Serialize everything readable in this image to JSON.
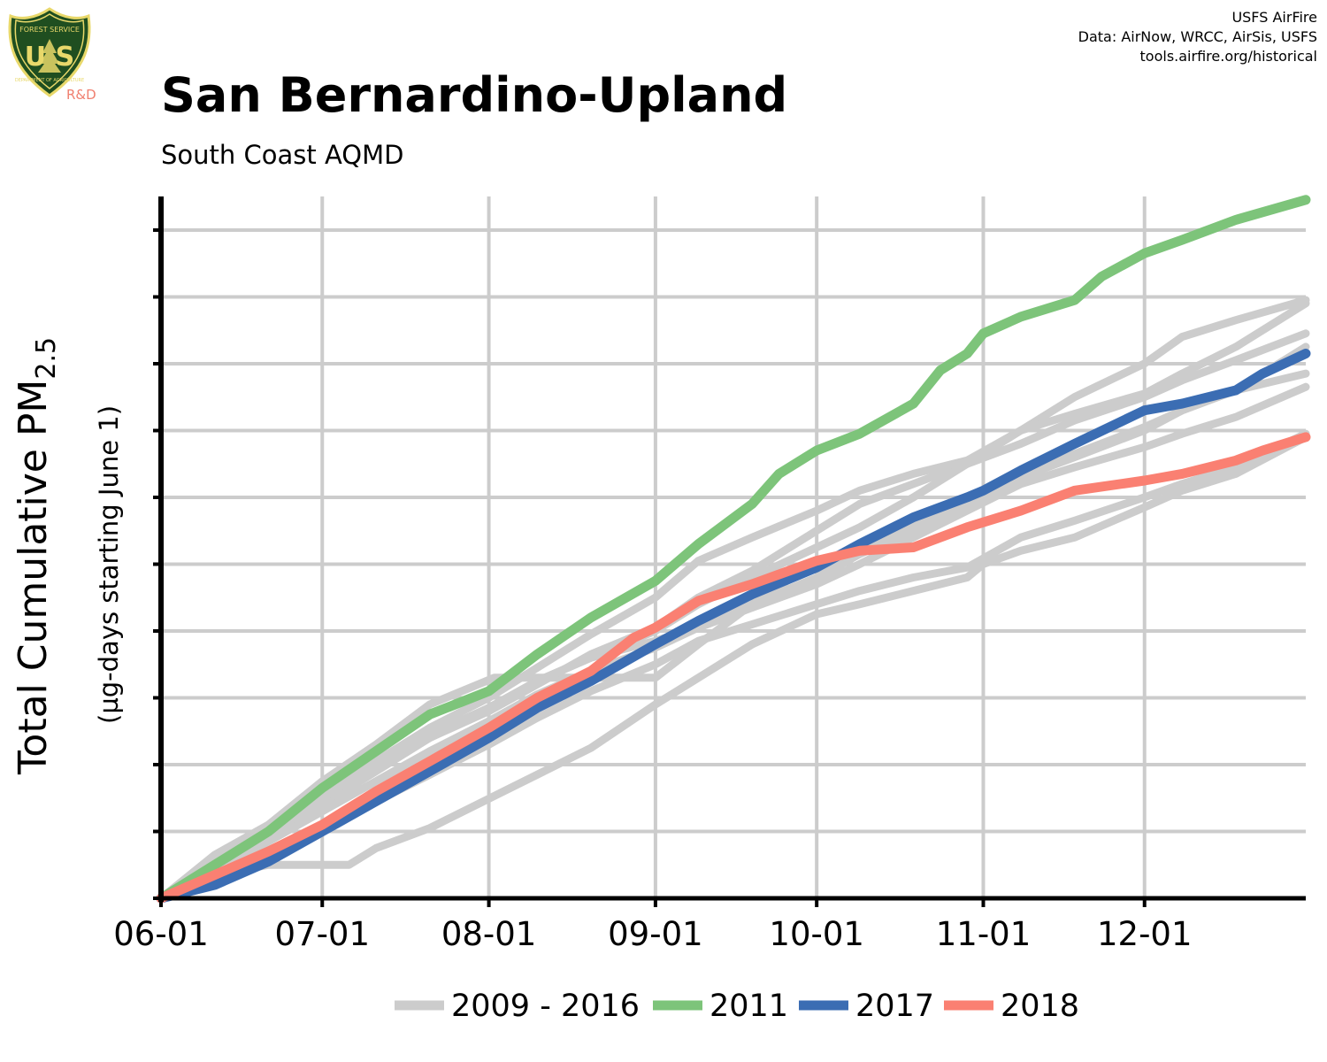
{
  "header": {
    "title": "San Bernardino-Upland",
    "subtitle": "South Coast AQMD",
    "credits": [
      "USFS AirFire",
      "Data: AirNow, WRCC, AirSis, USFS",
      "tools.airfire.org/historical"
    ]
  },
  "logo": {
    "icon": "usfs-shield-icon",
    "top_text": "FOREST SERVICE",
    "main_text": "U S",
    "bottom_text": "DEPARTMENT OF AGRICULTURE",
    "badge": "R&D",
    "colors": {
      "shield": "#1f4e20",
      "gold": "#e8d86a"
    }
  },
  "chart_data": {
    "type": "line",
    "xlabel": "",
    "ylabel": "Total Cumulative PM",
    "ylabel_subscript": "2.5",
    "ylabel_note": "(µg-days starting June 1)",
    "y_tick_labels_shown": false,
    "y_tick_count": 11,
    "x_ticks": [
      "06-01",
      "07-01",
      "08-01",
      "09-01",
      "10-01",
      "11-01",
      "12-01"
    ],
    "x_tick_days": [
      0,
      30,
      61,
      92,
      122,
      153,
      183
    ],
    "xlim_days": [
      0,
      213
    ],
    "ylim": [
      0,
      105
    ],
    "grid": true,
    "legend_position": "bottom",
    "legend": [
      {
        "label": "2009 - 2016",
        "color": "#cccccc"
      },
      {
        "label": "2011",
        "color": "#7dc47a"
      },
      {
        "label": "2017",
        "color": "#3b6db3"
      },
      {
        "label": "2018",
        "color": "#fa8072"
      }
    ],
    "series": [
      {
        "name": "2009 - 2016",
        "group": "background",
        "color": "#cccccc",
        "x": [
          0,
          10,
          20,
          30,
          35,
          40,
          50,
          60,
          70,
          80,
          92,
          100,
          110,
          122,
          130,
          140,
          150,
          153,
          160,
          170,
          183,
          190,
          200,
          213
        ],
        "y": [
          0,
          3.5,
          5.0,
          5.0,
          5.0,
          7.5,
          10.5,
          14.5,
          18.5,
          22.5,
          29.0,
          33.0,
          38.0,
          42.5,
          44.0,
          46.0,
          48.0,
          50.0,
          52.0,
          54.0,
          58.5,
          61.0,
          63.5,
          69.0
        ]
      },
      {
        "name": "2009 - 2016",
        "group": "background",
        "color": "#cccccc",
        "x": [
          0,
          10,
          20,
          30,
          40,
          50,
          62,
          70,
          80,
          92,
          100,
          110,
          122,
          130,
          140,
          150,
          160,
          170,
          183,
          190,
          200,
          213
        ],
        "y": [
          0,
          6.5,
          11.0,
          17.5,
          23.0,
          29.0,
          33.0,
          33.0,
          33.0,
          33.0,
          38.0,
          44.0,
          50.5,
          52.0,
          56.0,
          60.0,
          63.0,
          66.0,
          70.0,
          73.0,
          76.0,
          78.5
        ]
      },
      {
        "name": "2009 - 2016",
        "group": "background",
        "color": "#cccccc",
        "x": [
          0,
          10,
          20,
          30,
          40,
          50,
          61,
          70,
          80,
          92,
          100,
          110,
          122,
          130,
          140,
          150,
          160,
          170,
          183,
          190,
          200,
          213
        ],
        "y": [
          0,
          4.5,
          9.5,
          15.0,
          19.5,
          24.0,
          28.5,
          32.5,
          36.0,
          38.5,
          40.5,
          44.0,
          48.0,
          51.5,
          55.0,
          59.0,
          63.0,
          66.5,
          70.5,
          73.0,
          76.0,
          82.5
        ]
      },
      {
        "name": "2009 - 2016",
        "group": "background",
        "color": "#cccccc",
        "x": [
          0,
          10,
          20,
          30,
          40,
          50,
          61,
          70,
          80,
          92,
          100,
          110,
          122,
          130,
          140,
          150,
          160,
          170,
          183,
          190,
          200,
          213
        ],
        "y": [
          0,
          4.0,
          9.0,
          14.0,
          19.0,
          24.0,
          28.0,
          32.0,
          36.5,
          40.5,
          45.0,
          49.0,
          55.0,
          59.0,
          62.0,
          65.0,
          70.0,
          75.0,
          80.0,
          84.0,
          86.5,
          89.5
        ]
      },
      {
        "name": "2009 - 2016",
        "group": "background",
        "color": "#cccccc",
        "x": [
          0,
          10,
          20,
          30,
          40,
          50,
          61,
          70,
          80,
          92,
          100,
          110,
          122,
          130,
          140,
          150,
          160,
          170,
          183,
          190,
          200,
          213
        ],
        "y": [
          0,
          4.0,
          8.5,
          13.0,
          17.5,
          22.0,
          26.5,
          30.5,
          34.0,
          37.5,
          40.5,
          43.5,
          47.0,
          50.0,
          54.0,
          58.0,
          62.0,
          64.5,
          67.5,
          69.5,
          72.0,
          76.5
        ]
      },
      {
        "name": "2009 - 2016",
        "group": "background",
        "color": "#cccccc",
        "x": [
          0,
          10,
          20,
          30,
          40,
          50,
          61,
          70,
          80,
          92,
          100,
          110,
          122,
          130,
          140,
          150,
          160,
          170,
          183,
          190,
          200,
          213
        ],
        "y": [
          0,
          5.0,
          10.0,
          15.5,
          20.5,
          25.5,
          30.0,
          34.5,
          39.5,
          45.0,
          50.5,
          54.0,
          58.0,
          61.0,
          63.5,
          65.5,
          70.0,
          72.5,
          75.5,
          78.5,
          82.5,
          89.0
        ]
      },
      {
        "name": "2009 - 2016",
        "group": "background",
        "color": "#cccccc",
        "x": [
          0,
          10,
          20,
          30,
          40,
          50,
          61,
          70,
          80,
          92,
          100,
          110,
          122,
          130,
          140,
          150,
          160,
          170,
          183,
          190,
          200,
          213
        ],
        "y": [
          0,
          5.0,
          10.0,
          15.0,
          20.0,
          24.5,
          28.5,
          32.5,
          36.0,
          40.0,
          44.0,
          48.0,
          52.5,
          55.5,
          60.0,
          65.0,
          68.0,
          71.5,
          75.0,
          77.5,
          80.5,
          84.5
        ]
      },
      {
        "name": "2009 - 2016",
        "group": "background",
        "color": "#cccccc",
        "x": [
          0,
          10,
          20,
          30,
          40,
          50,
          61,
          70,
          80,
          92,
          100,
          110,
          122,
          130,
          140,
          150,
          160,
          170,
          183,
          190,
          200,
          213
        ],
        "y": [
          0,
          2.5,
          6.0,
          10.5,
          14.5,
          18.5,
          23.0,
          27.0,
          31.0,
          35.0,
          38.5,
          41.0,
          44.0,
          46.0,
          48.0,
          49.5,
          54.0,
          56.5,
          60.0,
          62.0,
          64.5,
          69.5
        ]
      },
      {
        "name": "2011",
        "group": "highlight",
        "color": "#7dc47a",
        "x": [
          0,
          10,
          20,
          30,
          40,
          50,
          61,
          70,
          80,
          92,
          100,
          110,
          115,
          122,
          130,
          140,
          145,
          150,
          153,
          160,
          170,
          175,
          183,
          190,
          200,
          213
        ],
        "y": [
          0,
          5.0,
          10.0,
          16.5,
          22.0,
          27.5,
          31.0,
          36.5,
          42.0,
          47.5,
          53.0,
          59.0,
          63.5,
          67.0,
          69.5,
          74.0,
          79.0,
          81.5,
          84.5,
          87.0,
          89.5,
          93.0,
          96.5,
          98.5,
          101.5,
          104.5
        ]
      },
      {
        "name": "2017",
        "group": "highlight",
        "color": "#3b6db3",
        "x": [
          0,
          10,
          20,
          30,
          40,
          50,
          61,
          70,
          80,
          92,
          100,
          110,
          122,
          130,
          140,
          150,
          153,
          160,
          170,
          183,
          190,
          200,
          205,
          213
        ],
        "y": [
          0,
          2.0,
          5.5,
          10.0,
          14.5,
          19.0,
          24.0,
          28.5,
          32.5,
          38.0,
          41.5,
          45.5,
          49.5,
          53.0,
          57.0,
          60.0,
          61.0,
          64.0,
          68.0,
          73.0,
          74.0,
          76.0,
          78.5,
          81.5
        ]
      },
      {
        "name": "2018",
        "group": "highlight",
        "color": "#fa8072",
        "x": [
          0,
          10,
          20,
          30,
          40,
          50,
          61,
          70,
          80,
          88,
          92,
          100,
          110,
          122,
          130,
          140,
          150,
          160,
          170,
          183,
          190,
          200,
          205,
          213
        ],
        "y": [
          0,
          3.5,
          7.0,
          11.0,
          16.0,
          20.5,
          25.5,
          30.0,
          34.0,
          39.0,
          40.5,
          44.5,
          47.0,
          50.5,
          52.0,
          52.5,
          55.5,
          58.0,
          61.0,
          62.5,
          63.5,
          65.5,
          67.0,
          69.0
        ]
      }
    ]
  }
}
